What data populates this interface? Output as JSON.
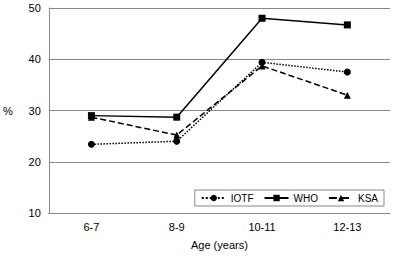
{
  "chart_data": {
    "type": "line",
    "x_label": "Age (years)",
    "y_label": "%",
    "categories": [
      "6-7",
      "8-9",
      "10-11",
      "12-13"
    ],
    "series": [
      {
        "name": "IOTF",
        "color": "#000000",
        "marker": "circle",
        "line_style": "dotted",
        "values": [
          23.4,
          24.0,
          39.4,
          37.5
        ]
      },
      {
        "name": "WHO",
        "color": "#000000",
        "marker": "square",
        "line_style": "solid",
        "values": [
          29.0,
          28.7,
          48.0,
          46.7
        ]
      },
      {
        "name": "KSA",
        "color": "#000000",
        "marker": "triangle",
        "line_style": "dashed",
        "values": [
          28.7,
          25.2,
          38.7,
          33.0
        ]
      }
    ],
    "ylim": [
      10,
      50
    ],
    "yticks": [
      10,
      20,
      30,
      40,
      50
    ],
    "grid": true,
    "legend": "lower right"
  }
}
